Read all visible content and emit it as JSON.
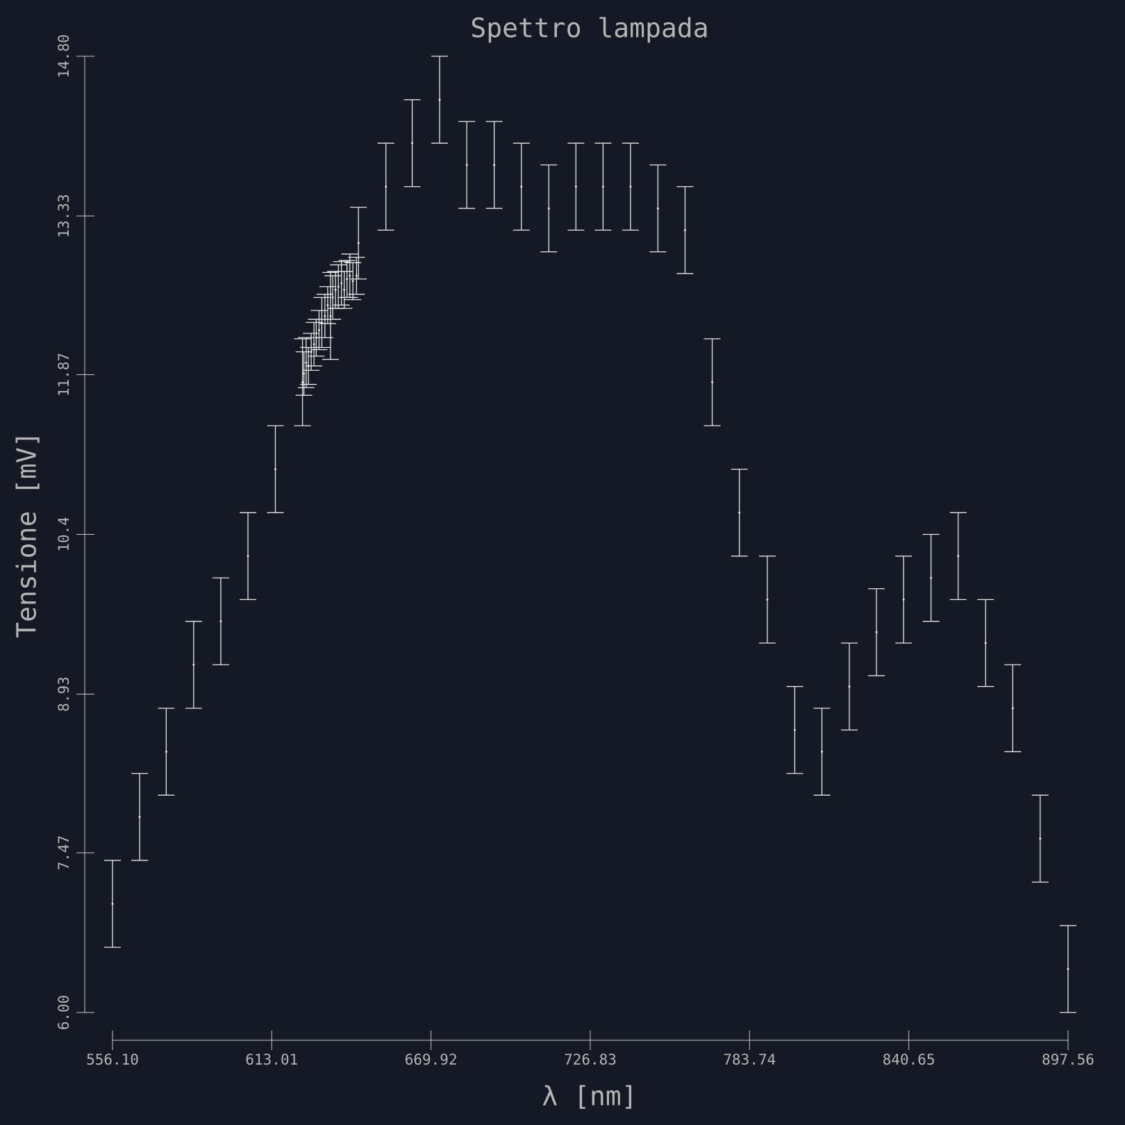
{
  "chart_data": {
    "type": "errorbar",
    "title": "Spettro lampada",
    "x_label": "λ [nm]",
    "y_label": "Tensione [mV]",
    "color": "#e8e8e8",
    "x": [
      556.1,
      565.8,
      575.3,
      585.1,
      594.8,
      604.5,
      614.3,
      624.0,
      624.5,
      625.3,
      626.1,
      627.1,
      628.1,
      628.9,
      629.9,
      630.9,
      632.0,
      633.0,
      634.0,
      634.8,
      635.8,
      636.8,
      637.9,
      638.9,
      639.9,
      640.9,
      642.0,
      643.3,
      644.0,
      653.8,
      663.2,
      673.0,
      682.7,
      692.5,
      702.2,
      712.0,
      721.7,
      731.4,
      741.2,
      751.0,
      760.7,
      770.4,
      780.1,
      790.1,
      799.9,
      809.6,
      819.4,
      829.1,
      838.8,
      848.6,
      858.3,
      868.1,
      877.8,
      887.6,
      897.56
    ],
    "values": [
      7.0,
      7.8,
      8.4,
      9.2,
      9.6,
      10.2,
      11.0,
      11.8,
      11.88,
      11.98,
      11.95,
      12.08,
      12.15,
      12.21,
      12.28,
      12.35,
      12.41,
      12.51,
      12.41,
      12.58,
      12.65,
      12.68,
      12.71,
      12.65,
      12.75,
      12.78,
      12.73,
      12.78,
      13.08,
      13.6,
      14.0,
      14.4,
      13.8,
      13.8,
      13.6,
      13.4,
      13.6,
      13.6,
      13.6,
      13.4,
      13.2,
      11.8,
      10.6,
      9.8,
      8.6,
      8.4,
      9.0,
      9.5,
      9.8,
      10.0,
      10.2,
      9.4,
      8.8,
      7.6,
      6.4
    ],
    "errors": [
      0.4,
      0.4,
      0.4,
      0.4,
      0.4,
      0.4,
      0.4,
      0.4,
      0.2,
      0.23,
      0.17,
      0.17,
      0.2,
      0.17,
      0.18,
      0.23,
      0.2,
      0.17,
      0.4,
      0.2,
      0.17,
      0.2,
      0.2,
      0.17,
      0.17,
      0.2,
      0.17,
      0.17,
      0.33,
      0.4,
      0.4,
      0.4,
      0.4,
      0.4,
      0.4,
      0.4,
      0.4,
      0.4,
      0.4,
      0.4,
      0.4,
      0.4,
      0.4,
      0.4,
      0.4,
      0.4,
      0.4,
      0.4,
      0.4,
      0.4,
      0.4,
      0.4,
      0.4,
      0.4,
      0.4
    ],
    "xlim": [
      556.1,
      897.56
    ],
    "ylim": [
      6,
      14.8
    ],
    "xticks": [
      {
        "value": 556.1,
        "label": "556.10"
      },
      613.01,
      669.92,
      726.83,
      783.74,
      840.65,
      897.56
    ],
    "yticks": [
      {
        "value": 6,
        "label": "6.00"
      },
      7.47,
      8.93,
      10.4,
      11.87,
      13.33,
      {
        "value": 14.8,
        "label": "14.80"
      }
    ]
  }
}
